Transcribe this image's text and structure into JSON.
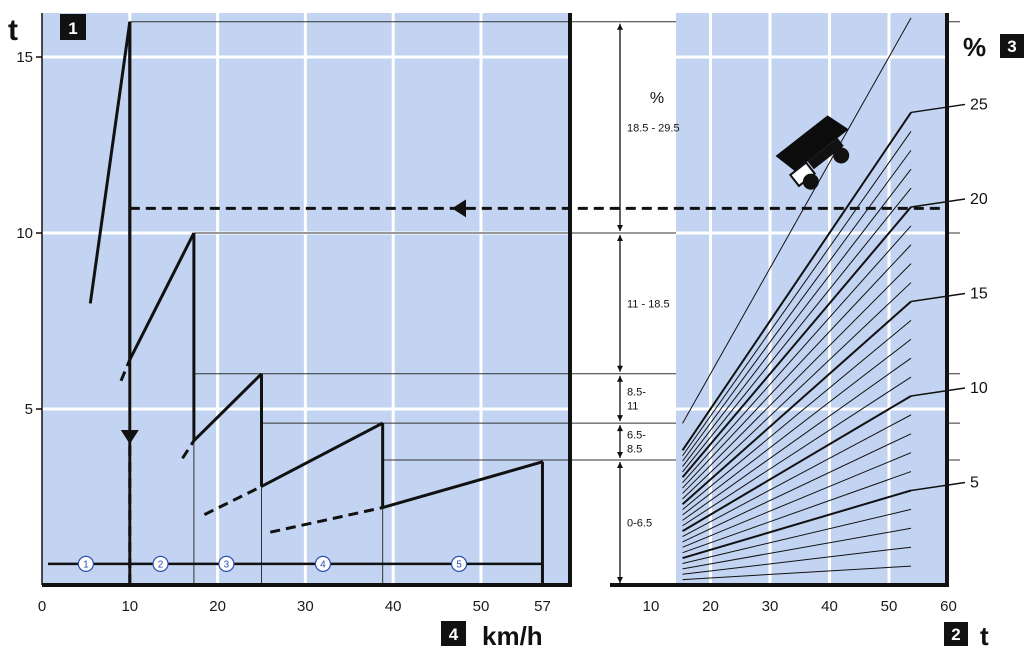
{
  "chart_data": [
    {
      "type": "line",
      "name": "tractive-effort",
      "badge": "1",
      "axis_badge": "4",
      "ylabel": "t",
      "xlabel": "km/h",
      "xlim": [
        0,
        60
      ],
      "ylim": [
        0,
        16
      ],
      "x_ticks": [
        "0",
        "10",
        "20",
        "30",
        "40",
        "50",
        "57"
      ],
      "x_tick_values": [
        0,
        10,
        20,
        30,
        40,
        50,
        57
      ],
      "y_ticks": [
        "5",
        "10",
        "15"
      ],
      "y_tick_values": [
        5,
        10,
        15
      ],
      "grid": true,
      "gear_labels": [
        "1",
        "2",
        "3",
        "4",
        "5"
      ],
      "gear_label_x": [
        5,
        13.5,
        21,
        32,
        47.5
      ],
      "gear_line_y": 0.6,
      "gears": [
        {
          "name": "1",
          "solid": [
            [
              5.5,
              8
            ],
            [
              10,
              16
            ]
          ]
        },
        {
          "name": "2",
          "solid": [
            [
              10,
              6.4
            ],
            [
              17.3,
              10
            ]
          ],
          "dashed": [
            [
              9,
              5.8
            ],
            [
              10,
              6.4
            ]
          ]
        },
        {
          "name": "3",
          "solid": [
            [
              17.3,
              4.1
            ],
            [
              25,
              6
            ]
          ],
          "dashed": [
            [
              16,
              3.6
            ],
            [
              17.3,
              4.1
            ]
          ]
        },
        {
          "name": "4",
          "solid": [
            [
              25,
              2.8
            ],
            [
              38.8,
              4.6
            ]
          ],
          "dashed": [
            [
              18.5,
              2
            ],
            [
              25,
              2.8
            ]
          ]
        },
        {
          "name": "5",
          "solid": [
            [
              38.8,
              2.2
            ],
            [
              57,
              3.5
            ]
          ],
          "dashed": [
            [
              26,
              1.5
            ],
            [
              38.8,
              2.2
            ]
          ]
        }
      ],
      "shift_points_x": [
        10,
        17.3,
        25,
        38.8,
        57
      ],
      "example": {
        "speed": 10,
        "force": 10.7
      }
    },
    {
      "type": "line",
      "name": "grade-resistance",
      "badge": "3",
      "axis_badge": "2",
      "ylabel": "%",
      "xlabel": "t",
      "xlim": [
        5,
        60
      ],
      "x_ticks": [
        "10",
        "20",
        "30",
        "40",
        "50",
        "60"
      ],
      "x_tick_values": [
        10,
        20,
        30,
        40,
        50,
        60
      ],
      "grade_labels": [
        "25",
        "20",
        "15",
        "10",
        "5"
      ],
      "grade_label_values": [
        25,
        20,
        15,
        10,
        5
      ],
      "grades_percent": [
        1,
        2,
        3,
        4,
        5,
        6,
        7,
        8,
        9,
        10,
        11,
        12,
        13,
        14,
        15,
        16,
        17,
        18,
        19,
        20,
        21,
        22,
        23,
        24,
        25,
        30
      ],
      "weight_range": [
        15.3,
        53.7
      ],
      "grid": true,
      "bands": [
        {
          "label": "18.5 - 29.5",
          "from": 10,
          "to": 16
        },
        {
          "label": "11 - 18.5",
          "from": 6,
          "to": 10
        },
        {
          "label": "8.5-\n11",
          "from": 4.6,
          "to": 6
        },
        {
          "label": "6.5-\n8.5",
          "from": 3.55,
          "to": 4.6
        },
        {
          "label": "0-6.5",
          "from": 0,
          "to": 3.55
        }
      ],
      "band_unit": "%"
    }
  ]
}
